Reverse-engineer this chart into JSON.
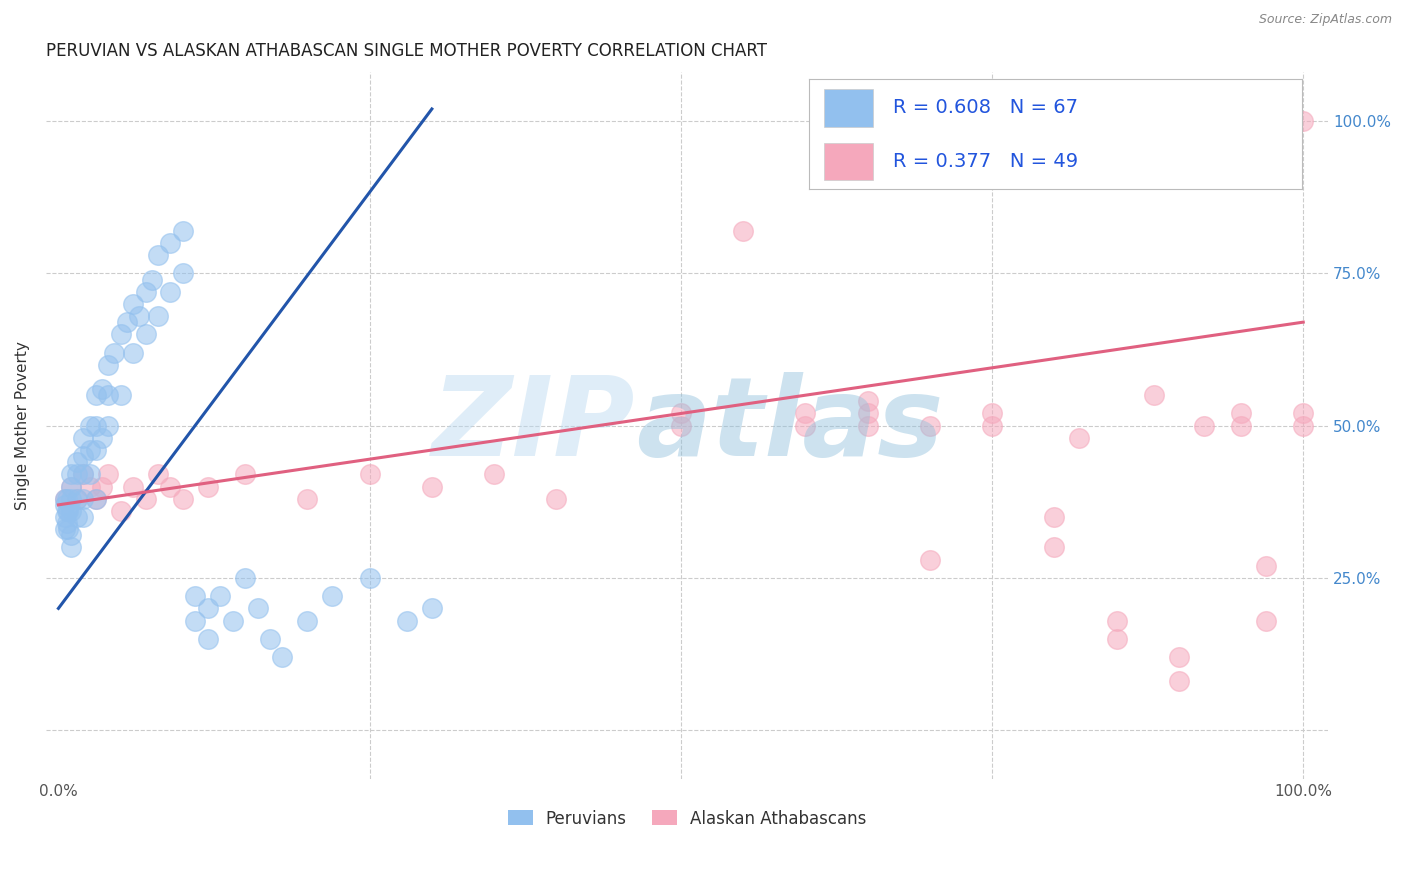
{
  "title": "PERUVIAN VS ALASKAN ATHABASCAN SINGLE MOTHER POVERTY CORRELATION CHART",
  "source": "Source: ZipAtlas.com",
  "ylabel": "Single Mother Poverty",
  "xlim": [
    -0.01,
    1.02
  ],
  "ylim": [
    -0.08,
    1.08
  ],
  "blue_color": "#92C0EE",
  "pink_color": "#F5A8BC",
  "blue_line_color": "#2255AA",
  "pink_line_color": "#E06080",
  "R_blue": 0.608,
  "N_blue": 67,
  "R_pink": 0.377,
  "N_pink": 49,
  "legend_label_blue": "Peruvians",
  "legend_label_pink": "Alaskan Athabascans",
  "blue_points_x": [
    0.005,
    0.005,
    0.005,
    0.005,
    0.007,
    0.007,
    0.007,
    0.008,
    0.008,
    0.01,
    0.01,
    0.01,
    0.01,
    0.01,
    0.01,
    0.015,
    0.015,
    0.015,
    0.015,
    0.02,
    0.02,
    0.02,
    0.02,
    0.02,
    0.025,
    0.025,
    0.025,
    0.03,
    0.03,
    0.03,
    0.03,
    0.035,
    0.035,
    0.04,
    0.04,
    0.04,
    0.045,
    0.05,
    0.05,
    0.055,
    0.06,
    0.06,
    0.065,
    0.07,
    0.07,
    0.075,
    0.08,
    0.08,
    0.09,
    0.09,
    0.1,
    0.1,
    0.11,
    0.11,
    0.12,
    0.12,
    0.13,
    0.14,
    0.15,
    0.16,
    0.17,
    0.18,
    0.2,
    0.22,
    0.25,
    0.28,
    0.3
  ],
  "blue_points_y": [
    0.33,
    0.35,
    0.37,
    0.38,
    0.34,
    0.36,
    0.38,
    0.33,
    0.36,
    0.36,
    0.38,
    0.4,
    0.42,
    0.32,
    0.3,
    0.42,
    0.44,
    0.38,
    0.35,
    0.45,
    0.48,
    0.42,
    0.38,
    0.35,
    0.5,
    0.46,
    0.42,
    0.55,
    0.5,
    0.46,
    0.38,
    0.56,
    0.48,
    0.6,
    0.55,
    0.5,
    0.62,
    0.65,
    0.55,
    0.67,
    0.7,
    0.62,
    0.68,
    0.72,
    0.65,
    0.74,
    0.78,
    0.68,
    0.8,
    0.72,
    0.82,
    0.75,
    0.22,
    0.18,
    0.2,
    0.15,
    0.22,
    0.18,
    0.25,
    0.2,
    0.15,
    0.12,
    0.18,
    0.22,
    0.25,
    0.18,
    0.2
  ],
  "pink_points_x": [
    0.005,
    0.01,
    0.015,
    0.02,
    0.025,
    0.03,
    0.035,
    0.04,
    0.05,
    0.06,
    0.07,
    0.08,
    0.09,
    0.1,
    0.12,
    0.15,
    0.2,
    0.25,
    0.3,
    0.35,
    0.4,
    0.5,
    0.5,
    0.55,
    0.6,
    0.6,
    0.65,
    0.65,
    0.65,
    0.7,
    0.7,
    0.75,
    0.75,
    0.8,
    0.8,
    0.82,
    0.85,
    0.85,
    0.88,
    0.9,
    0.9,
    0.92,
    0.95,
    0.95,
    0.97,
    0.97,
    1.0,
    1.0,
    1.0
  ],
  "pink_points_y": [
    0.38,
    0.4,
    0.38,
    0.42,
    0.4,
    0.38,
    0.4,
    0.42,
    0.36,
    0.4,
    0.38,
    0.42,
    0.4,
    0.38,
    0.4,
    0.42,
    0.38,
    0.42,
    0.4,
    0.42,
    0.38,
    0.5,
    0.52,
    0.82,
    0.5,
    0.52,
    0.5,
    0.52,
    0.54,
    0.5,
    0.28,
    0.5,
    0.52,
    0.3,
    0.35,
    0.48,
    0.15,
    0.18,
    0.55,
    0.12,
    0.08,
    0.5,
    0.5,
    0.52,
    0.18,
    0.27,
    0.5,
    0.52,
    1.0
  ],
  "blue_line": {
    "x0": 0.0,
    "y0": 0.2,
    "x1": 0.3,
    "y1": 1.02
  },
  "pink_line": {
    "x0": 0.0,
    "y0": 0.37,
    "x1": 1.0,
    "y1": 0.67
  },
  "grid_color": "#CCCCCC",
  "tick_color_right": "#4488CC",
  "title_fontsize": 12,
  "source_fontsize": 9,
  "axis_label_fontsize": 11,
  "tick_fontsize": 11
}
